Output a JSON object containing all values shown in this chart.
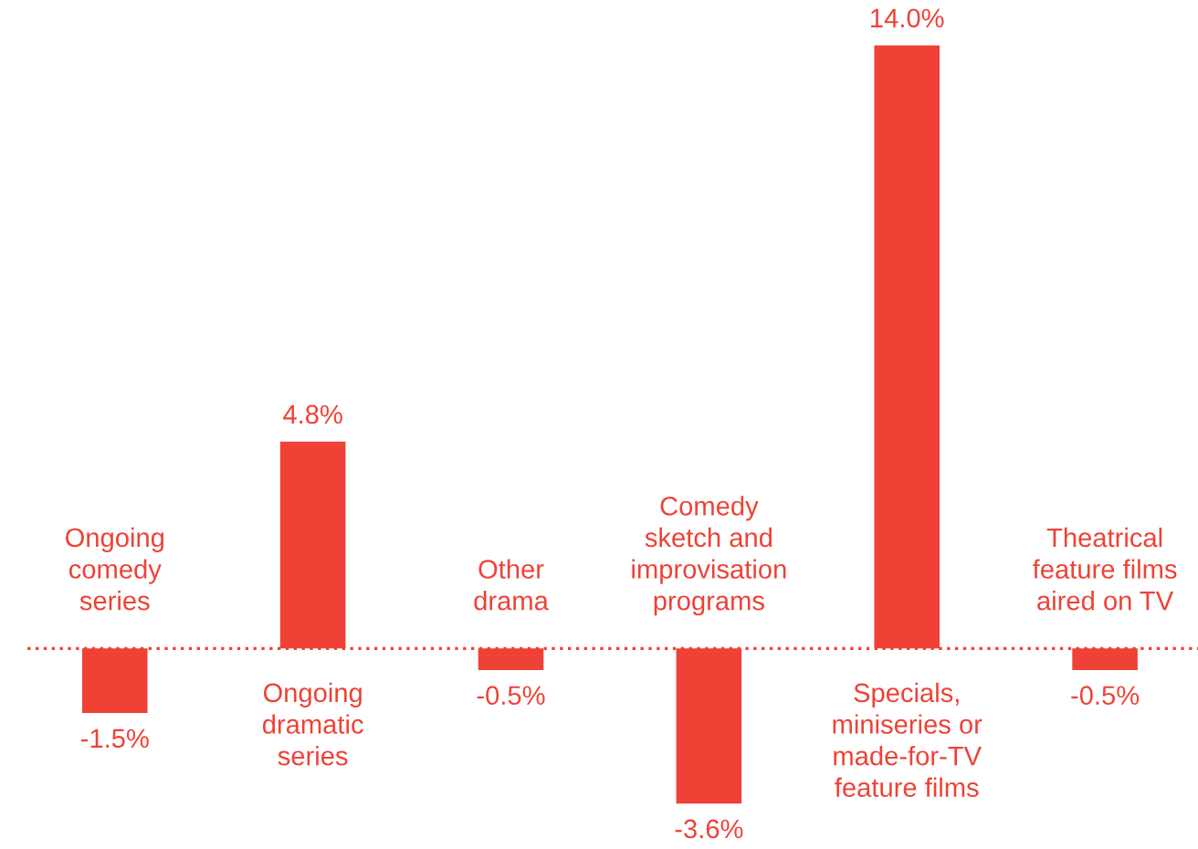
{
  "chart_data": {
    "type": "bar",
    "categories": [
      "Ongoing\ncomedy\nseries",
      "Ongoing\ndramatic\nseries",
      "Other\ndrama",
      "Comedy\nsketch and\nimprovisation\nprograms",
      "Specials,\nminiseries or\nmade-for-TV\nfeature films",
      "Theatrical\nfeature films\naired on TV"
    ],
    "values": [
      -1.5,
      4.8,
      -0.5,
      -3.6,
      14.0,
      -0.5
    ],
    "value_labels": [
      "-1.5%",
      "4.8%",
      "-0.5%",
      "-3.6%",
      "14.0%",
      "-0.5%"
    ],
    "color": "#ef4136",
    "ref_lines": [
      {
        "axis": "y",
        "value": 0,
        "line_style": "dotted",
        "color": "#ef4136"
      }
    ]
  }
}
